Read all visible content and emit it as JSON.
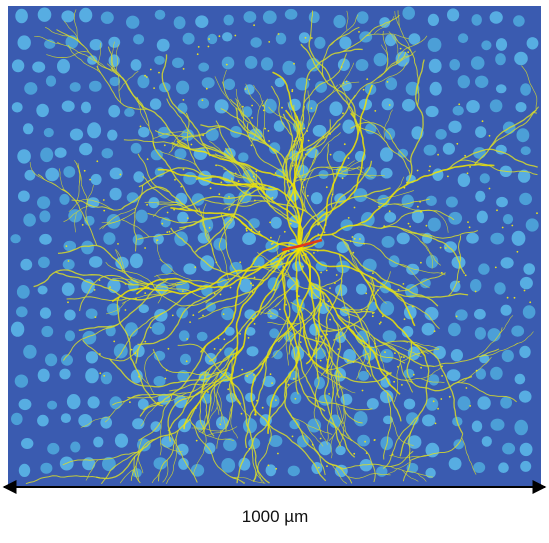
{
  "scale_bar": {
    "label": "1000 µm"
  }
}
